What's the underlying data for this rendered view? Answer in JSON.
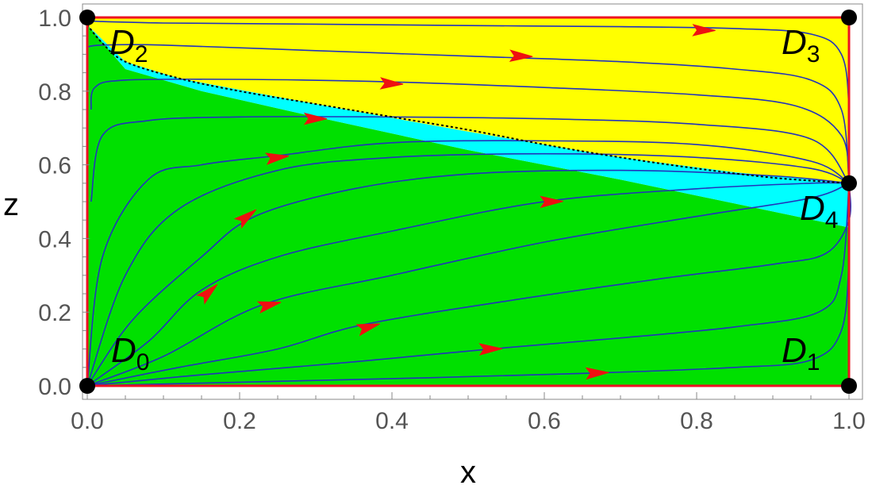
{
  "chart_data": {
    "type": "phase-portrait",
    "xlabel": "x",
    "ylabel": "z",
    "xlim": [
      0,
      1
    ],
    "ylim": [
      0,
      1
    ],
    "x_ticks": [
      "0.0",
      "0.2",
      "0.4",
      "0.6",
      "0.8",
      "1.0"
    ],
    "y_ticks": [
      "0.0",
      "0.2",
      "0.4",
      "0.6",
      "0.8",
      "1.0"
    ],
    "regions": [
      {
        "color": "#00e000",
        "polygon": [
          [
            0,
            0
          ],
          [
            0,
            0.98
          ],
          [
            0.05,
            0.86
          ],
          [
            0.15,
            0.8
          ],
          [
            0.3,
            0.73
          ],
          [
            0.5,
            0.64
          ],
          [
            0.7,
            0.56
          ],
          [
            1,
            0.43
          ],
          [
            1,
            0
          ]
        ]
      },
      {
        "color": "#00ffff",
        "polygon": [
          [
            0,
            0.98
          ],
          [
            0.05,
            0.88
          ],
          [
            0.12,
            0.835
          ],
          [
            0.3,
            0.765
          ],
          [
            0.5,
            0.69
          ],
          [
            0.7,
            0.62
          ],
          [
            0.85,
            0.58
          ],
          [
            1,
            0.55
          ],
          [
            1,
            0.43
          ],
          [
            0.7,
            0.56
          ],
          [
            0.5,
            0.64
          ],
          [
            0.3,
            0.73
          ],
          [
            0.15,
            0.8
          ],
          [
            0.05,
            0.86
          ]
        ]
      },
      {
        "color": "#ffff00",
        "polygon": [
          [
            0,
            1
          ],
          [
            1,
            1
          ],
          [
            1,
            0.55
          ],
          [
            0.85,
            0.58
          ],
          [
            0.7,
            0.62
          ],
          [
            0.5,
            0.69
          ],
          [
            0.3,
            0.765
          ],
          [
            0.12,
            0.835
          ],
          [
            0.05,
            0.88
          ],
          [
            0,
            0.98
          ]
        ]
      }
    ],
    "separatrix": [
      [
        0,
        0.98
      ],
      [
        0.02,
        0.93
      ],
      [
        0.05,
        0.88
      ],
      [
        0.12,
        0.835
      ],
      [
        0.2,
        0.8
      ],
      [
        0.3,
        0.765
      ],
      [
        0.4,
        0.73
      ],
      [
        0.5,
        0.695
      ],
      [
        0.6,
        0.655
      ],
      [
        0.7,
        0.62
      ],
      [
        0.8,
        0.59
      ],
      [
        0.9,
        0.565
      ],
      [
        1,
        0.55
      ]
    ],
    "trajectories": [
      [
        [
          0,
          0.99
        ],
        [
          0.1,
          0.985
        ],
        [
          0.3,
          0.982
        ],
        [
          0.5,
          0.978
        ],
        [
          0.7,
          0.975
        ],
        [
          0.85,
          0.97
        ],
        [
          0.95,
          0.955
        ],
        [
          0.99,
          0.9
        ],
        [
          1,
          0.75
        ],
        [
          1,
          0.55
        ]
      ],
      [
        [
          0,
          0.92
        ],
        [
          0.02,
          0.925
        ],
        [
          0.1,
          0.925
        ],
        [
          0.3,
          0.91
        ],
        [
          0.5,
          0.895
        ],
        [
          0.7,
          0.88
        ],
        [
          0.85,
          0.86
        ],
        [
          0.95,
          0.83
        ],
        [
          0.99,
          0.75
        ],
        [
          1,
          0.55
        ]
      ],
      [
        [
          0.005,
          0.75
        ],
        [
          0.01,
          0.81
        ],
        [
          0.05,
          0.83
        ],
        [
          0.2,
          0.832
        ],
        [
          0.4,
          0.825
        ],
        [
          0.6,
          0.81
        ],
        [
          0.8,
          0.79
        ],
        [
          0.93,
          0.76
        ],
        [
          0.99,
          0.68
        ],
        [
          1,
          0.55
        ]
      ],
      [
        [
          0.005,
          0.5
        ],
        [
          0.02,
          0.68
        ],
        [
          0.08,
          0.72
        ],
        [
          0.2,
          0.73
        ],
        [
          0.4,
          0.73
        ],
        [
          0.6,
          0.725
        ],
        [
          0.8,
          0.71
        ],
        [
          0.95,
          0.67
        ],
        [
          1,
          0.55
        ]
      ],
      [
        [
          0,
          0
        ],
        [
          0.02,
          0.35
        ],
        [
          0.08,
          0.56
        ],
        [
          0.15,
          0.6
        ],
        [
          0.25,
          0.625
        ],
        [
          0.4,
          0.66
        ],
        [
          0.6,
          0.665
        ],
        [
          0.8,
          0.655
        ],
        [
          0.95,
          0.61
        ],
        [
          1,
          0.55
        ]
      ],
      [
        [
          0,
          0
        ],
        [
          0.05,
          0.3
        ],
        [
          0.12,
          0.48
        ],
        [
          0.25,
          0.585
        ],
        [
          0.4,
          0.62
        ],
        [
          0.6,
          0.63
        ],
        [
          0.8,
          0.62
        ],
        [
          0.95,
          0.59
        ],
        [
          1,
          0.55
        ]
      ],
      [
        [
          0,
          0
        ],
        [
          0.06,
          0.18
        ],
        [
          0.15,
          0.35
        ],
        [
          0.22,
          0.46
        ],
        [
          0.35,
          0.535
        ],
        [
          0.5,
          0.575
        ],
        [
          0.7,
          0.585
        ],
        [
          0.9,
          0.57
        ],
        [
          1,
          0.55
        ]
      ],
      [
        [
          0,
          0
        ],
        [
          0.08,
          0.12
        ],
        [
          0.15,
          0.26
        ],
        [
          0.25,
          0.35
        ],
        [
          0.4,
          0.42
        ],
        [
          0.6,
          0.5
        ],
        [
          0.8,
          0.535
        ],
        [
          0.95,
          0.55
        ],
        [
          1,
          0.55
        ]
      ],
      [
        [
          0,
          0
        ],
        [
          0.1,
          0.08
        ],
        [
          0.23,
          0.22
        ],
        [
          0.4,
          0.3
        ],
        [
          0.6,
          0.39
        ],
        [
          0.8,
          0.46
        ],
        [
          0.95,
          0.51
        ],
        [
          1,
          0.55
        ]
      ],
      [
        [
          0,
          0
        ],
        [
          0.12,
          0.05
        ],
        [
          0.25,
          0.1
        ],
        [
          0.36,
          0.165
        ],
        [
          0.55,
          0.23
        ],
        [
          0.75,
          0.29
        ],
        [
          0.9,
          0.33
        ],
        [
          0.97,
          0.36
        ],
        [
          1,
          0.45
        ],
        [
          1,
          0.55
        ]
      ],
      [
        [
          0,
          0
        ],
        [
          0.15,
          0.03
        ],
        [
          0.35,
          0.065
        ],
        [
          0.53,
          0.1
        ],
        [
          0.7,
          0.13
        ],
        [
          0.85,
          0.16
        ],
        [
          0.96,
          0.2
        ],
        [
          0.99,
          0.3
        ],
        [
          1,
          0.55
        ]
      ],
      [
        [
          0,
          0
        ],
        [
          0.2,
          0.01
        ],
        [
          0.45,
          0.022
        ],
        [
          0.67,
          0.035
        ],
        [
          0.85,
          0.05
        ],
        [
          0.95,
          0.07
        ],
        [
          0.99,
          0.15
        ],
        [
          1,
          0.35
        ],
        [
          1,
          0.55
        ]
      ]
    ],
    "arrows": [
      [
        0.81,
        0.965
      ],
      [
        0.57,
        0.895
      ],
      [
        0.4,
        0.82
      ],
      [
        0.3,
        0.725
      ],
      [
        0.25,
        0.62
      ],
      [
        0.21,
        0.46
      ],
      [
        0.61,
        0.5
      ],
      [
        0.16,
        0.255
      ],
      [
        0.24,
        0.22
      ],
      [
        0.37,
        0.16
      ],
      [
        0.53,
        0.1
      ],
      [
        0.67,
        0.035
      ]
    ],
    "equilibria": [
      {
        "label": "D",
        "sub": "0",
        "x": 0,
        "z": 0,
        "anchor": "lower-right"
      },
      {
        "label": "D",
        "sub": "1",
        "x": 1,
        "z": 0,
        "anchor": "lower-left"
      },
      {
        "label": "D",
        "sub": "2",
        "x": 0,
        "z": 1,
        "anchor": "upper-right"
      },
      {
        "label": "D",
        "sub": "3",
        "x": 1,
        "z": 1,
        "anchor": "upper-left"
      },
      {
        "label": "D",
        "sub": "4",
        "x": 1,
        "z": 0.55,
        "anchor": "below-left"
      }
    ]
  }
}
